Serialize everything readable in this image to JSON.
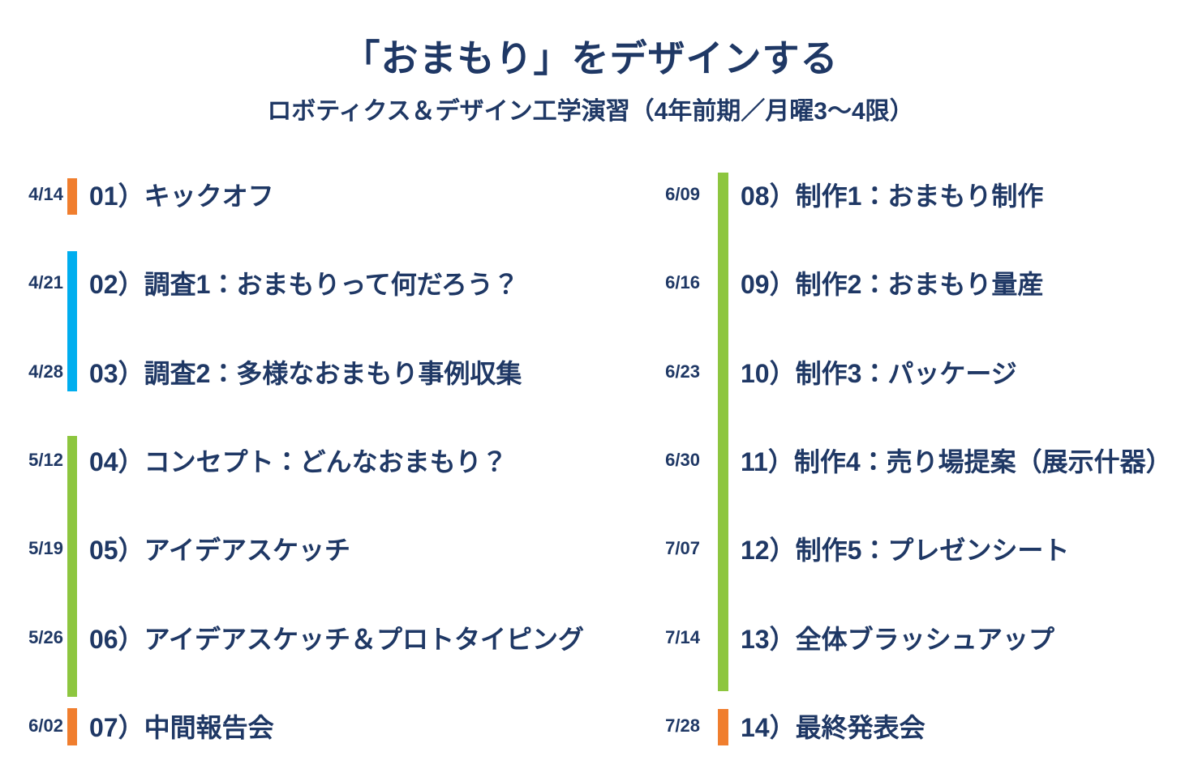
{
  "title": "「おまもり」をデザインする",
  "subtitle": "ロボティクス＆デザイン工学演習（4年前期／月曜3～4限）",
  "colors": {
    "text_navy": "#1F3865",
    "bar_orange": "#F07E2E",
    "bar_blue": "#00AEEF",
    "bar_green": "#8DC63F"
  },
  "schedule": {
    "left": {
      "rows": [
        {
          "date": "4/14",
          "label": "01）キックオフ",
          "bar": "orange"
        },
        {
          "date": "4/21",
          "label": "02）調査1：おまもりって何だろう？",
          "bar": "blue"
        },
        {
          "date": "4/28",
          "label": "03）調査2：多様なおまもり事例収集",
          "bar": "blue"
        },
        {
          "date": "5/12",
          "label": "04）コンセプト：どんなおまもり？",
          "bar": "green"
        },
        {
          "date": "5/19",
          "label": "05）アイデアスケッチ",
          "bar": "green"
        },
        {
          "date": "5/26",
          "label": "06）アイデアスケッチ＆プロトタイピング",
          "bar": "green"
        },
        {
          "date": "6/02",
          "label": "07）中間報告会",
          "bar": "orange"
        }
      ]
    },
    "right": {
      "rows": [
        {
          "date": "6/09",
          "label": "08）制作1：おまもり制作",
          "bar": "green"
        },
        {
          "date": "6/16",
          "label": "09）制作2：おまもり量産",
          "bar": "green"
        },
        {
          "date": "6/23",
          "label": "10）制作3：パッケージ",
          "bar": "green"
        },
        {
          "date": "6/30",
          "label": "11）制作4：売り場提案（展示什器）",
          "bar": "green"
        },
        {
          "date": "7/07",
          "label": "12）制作5：プレゼンシート",
          "bar": "green"
        },
        {
          "date": "7/14",
          "label": "13）全体ブラッシュアップ",
          "bar": "green"
        },
        {
          "date": "7/28",
          "label": "14）最終発表会",
          "bar": "orange"
        }
      ]
    }
  }
}
